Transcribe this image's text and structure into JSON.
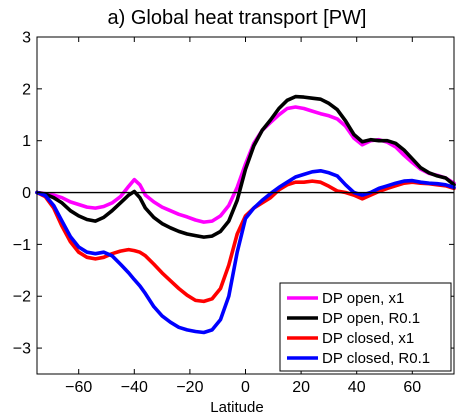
{
  "chart_data": {
    "type": "line",
    "title": "a) Global heat transport [PW]",
    "xlabel": "Latitude",
    "ylabel": "",
    "xlim": [
      -75,
      75
    ],
    "ylim": [
      -3.5,
      3
    ],
    "xticks": [
      -60,
      -40,
      -20,
      0,
      20,
      40,
      60
    ],
    "xtick_labels": [
      "−60",
      "−40",
      "−20",
      "0",
      "20",
      "40",
      "60"
    ],
    "yticks": [
      3,
      2,
      1,
      0,
      -1,
      -2,
      -3
    ],
    "ytick_labels": [
      "3",
      "2",
      "1",
      "0",
      "−1",
      "−2",
      "−3"
    ],
    "zero_line": true,
    "grid": false,
    "legend_position": "bottom-right",
    "series": [
      {
        "name": "DP open, x1",
        "color": "#ff00ff",
        "x": [
          -75,
          -72,
          -69,
          -66,
          -63,
          -60,
          -57,
          -54,
          -51,
          -48,
          -45,
          -42,
          -40,
          -38,
          -36,
          -33,
          -30,
          -27,
          -24,
          -21,
          -18,
          -15,
          -12,
          -9,
          -6,
          -3,
          0,
          3,
          6,
          9,
          12,
          15,
          18,
          21,
          24,
          27,
          30,
          33,
          36,
          39,
          42,
          45,
          48,
          51,
          54,
          57,
          60,
          63,
          66,
          69,
          72,
          75
        ],
        "y": [
          0,
          -0.02,
          -0.05,
          -0.1,
          -0.18,
          -0.23,
          -0.28,
          -0.3,
          -0.27,
          -0.2,
          -0.08,
          0.12,
          0.25,
          0.15,
          -0.05,
          -0.18,
          -0.28,
          -0.35,
          -0.42,
          -0.47,
          -0.53,
          -0.57,
          -0.55,
          -0.45,
          -0.25,
          0.1,
          0.55,
          0.95,
          1.2,
          1.35,
          1.5,
          1.62,
          1.65,
          1.62,
          1.57,
          1.52,
          1.48,
          1.42,
          1.28,
          1.05,
          0.92,
          1.0,
          1.02,
          0.97,
          0.88,
          0.72,
          0.58,
          0.45,
          0.37,
          0.33,
          0.28,
          0.18
        ]
      },
      {
        "name": "DP open, R0.1",
        "color": "#000000",
        "x": [
          -75,
          -72,
          -69,
          -66,
          -63,
          -60,
          -57,
          -54,
          -51,
          -48,
          -45,
          -42,
          -40,
          -38,
          -36,
          -33,
          -30,
          -27,
          -24,
          -21,
          -18,
          -15,
          -12,
          -9,
          -6,
          -3,
          0,
          3,
          6,
          9,
          12,
          15,
          18,
          21,
          24,
          27,
          30,
          33,
          36,
          39,
          42,
          45,
          48,
          51,
          54,
          57,
          60,
          63,
          66,
          69,
          72,
          75
        ],
        "y": [
          0,
          -0.03,
          -0.1,
          -0.2,
          -0.35,
          -0.45,
          -0.52,
          -0.55,
          -0.48,
          -0.35,
          -0.2,
          -0.05,
          0.02,
          -0.1,
          -0.3,
          -0.48,
          -0.6,
          -0.68,
          -0.75,
          -0.8,
          -0.83,
          -0.86,
          -0.84,
          -0.75,
          -0.55,
          -0.15,
          0.45,
          0.9,
          1.2,
          1.4,
          1.62,
          1.78,
          1.85,
          1.84,
          1.82,
          1.8,
          1.72,
          1.6,
          1.38,
          1.12,
          0.98,
          1.02,
          1.0,
          1.0,
          0.95,
          0.82,
          0.65,
          0.48,
          0.38,
          0.32,
          0.28,
          0.15
        ]
      },
      {
        "name": "DP closed, x1",
        "color": "#ff0000",
        "x": [
          -75,
          -72,
          -69,
          -66,
          -63,
          -60,
          -57,
          -54,
          -51,
          -48,
          -45,
          -42,
          -40,
          -38,
          -36,
          -33,
          -30,
          -27,
          -24,
          -21,
          -18,
          -15,
          -12,
          -9,
          -6,
          -3,
          0,
          3,
          6,
          9,
          12,
          15,
          18,
          21,
          24,
          27,
          30,
          33,
          36,
          39,
          42,
          45,
          48,
          51,
          54,
          57,
          60,
          63,
          66,
          69,
          72,
          75
        ],
        "y": [
          0,
          -0.08,
          -0.3,
          -0.65,
          -0.95,
          -1.15,
          -1.25,
          -1.28,
          -1.25,
          -1.18,
          -1.13,
          -1.1,
          -1.12,
          -1.15,
          -1.22,
          -1.38,
          -1.55,
          -1.7,
          -1.85,
          -1.98,
          -2.08,
          -2.1,
          -2.05,
          -1.85,
          -1.4,
          -0.8,
          -0.45,
          -0.3,
          -0.2,
          -0.1,
          0.05,
          0.15,
          0.2,
          0.2,
          0.22,
          0.2,
          0.12,
          0.03,
          0.0,
          -0.05,
          -0.12,
          -0.05,
          0.02,
          0.08,
          0.13,
          0.18,
          0.2,
          0.18,
          0.17,
          0.15,
          0.13,
          0.08
        ]
      },
      {
        "name": "DP closed, R0.1",
        "color": "#0000ff",
        "x": [
          -75,
          -72,
          -69,
          -66,
          -63,
          -60,
          -57,
          -54,
          -51,
          -48,
          -45,
          -42,
          -40,
          -38,
          -36,
          -33,
          -30,
          -27,
          -24,
          -21,
          -18,
          -15,
          -12,
          -9,
          -6,
          -3,
          0,
          3,
          6,
          9,
          12,
          15,
          18,
          21,
          24,
          27,
          30,
          33,
          36,
          39,
          42,
          45,
          48,
          51,
          54,
          57,
          60,
          63,
          66,
          69,
          72,
          75
        ],
        "y": [
          0,
          -0.06,
          -0.25,
          -0.55,
          -0.85,
          -1.05,
          -1.15,
          -1.18,
          -1.15,
          -1.22,
          -1.38,
          -1.55,
          -1.68,
          -1.8,
          -1.95,
          -2.2,
          -2.38,
          -2.5,
          -2.6,
          -2.65,
          -2.68,
          -2.7,
          -2.65,
          -2.45,
          -2.0,
          -1.15,
          -0.5,
          -0.3,
          -0.15,
          -0.02,
          0.1,
          0.2,
          0.3,
          0.35,
          0.4,
          0.42,
          0.38,
          0.32,
          0.15,
          0.0,
          -0.05,
          0.0,
          0.08,
          0.13,
          0.18,
          0.22,
          0.23,
          0.2,
          0.18,
          0.17,
          0.15,
          0.1
        ]
      }
    ]
  }
}
